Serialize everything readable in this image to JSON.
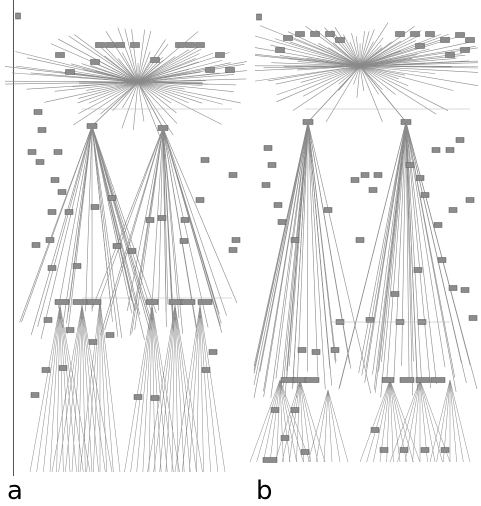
{
  "figure": {
    "panels": [
      {
        "id": "a",
        "caption": "a"
      },
      {
        "id": "b",
        "caption": "b"
      }
    ]
  },
  "colors": {
    "edge": "#8a8a8a",
    "node_fill": "#8c8c8c",
    "node_stroke": "#555555",
    "hub": "#4a4a4a"
  }
}
